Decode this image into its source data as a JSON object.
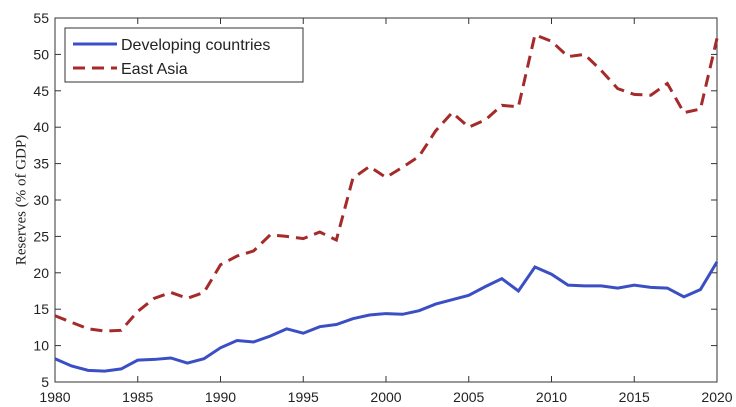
{
  "chart_data": {
    "type": "line",
    "y_label": "Reserves (% of GDP)",
    "x": [
      1980,
      1981,
      1982,
      1983,
      1984,
      1985,
      1986,
      1987,
      1988,
      1989,
      1990,
      1991,
      1992,
      1993,
      1994,
      1995,
      1996,
      1997,
      1998,
      1999,
      2000,
      2001,
      2002,
      2003,
      2004,
      2005,
      2006,
      2007,
      2008,
      2009,
      2010,
      2011,
      2012,
      2013,
      2014,
      2015,
      2016,
      2017,
      2018,
      2019,
      2020
    ],
    "series": [
      {
        "name": "Developing countries",
        "color": "#3b4fc4",
        "dash": "solid",
        "values": [
          8.2,
          7.2,
          6.6,
          6.5,
          6.8,
          8.0,
          8.1,
          8.3,
          7.6,
          8.2,
          9.7,
          10.7,
          10.5,
          11.3,
          12.3,
          11.7,
          12.6,
          12.9,
          13.7,
          14.2,
          14.4,
          14.3,
          14.8,
          15.7,
          16.3,
          16.9,
          18.1,
          19.2,
          17.5,
          20.8,
          19.8,
          18.3,
          18.2,
          18.2,
          17.9,
          18.3,
          18.0,
          17.9,
          16.7,
          17.7,
          21.5
        ]
      },
      {
        "name": "East Asia",
        "color": "#a52a2a",
        "dash": "dashed",
        "values": [
          14.1,
          13.2,
          12.3,
          12.0,
          12.1,
          14.7,
          16.5,
          17.3,
          16.5,
          17.3,
          21.1,
          22.3,
          23.0,
          25.2,
          25.0,
          24.7,
          25.6,
          24.5,
          33.0,
          34.6,
          33.1,
          34.5,
          36.0,
          39.5,
          42.0,
          40.0,
          41.0,
          43.0,
          42.8,
          52.7,
          51.8,
          49.7,
          50.0,
          47.8,
          45.3,
          44.5,
          44.4,
          46.0,
          42.0,
          42.5,
          52.2
        ]
      }
    ],
    "xlim": [
      1980,
      2020
    ],
    "xticks": [
      1980,
      1985,
      1990,
      1995,
      2000,
      2005,
      2010,
      2015,
      2020
    ],
    "ylim": [
      5,
      55
    ],
    "yticks": [
      5,
      10,
      15,
      20,
      25,
      30,
      35,
      40,
      45,
      50,
      55
    ],
    "legend": "upper left",
    "grid": false
  }
}
